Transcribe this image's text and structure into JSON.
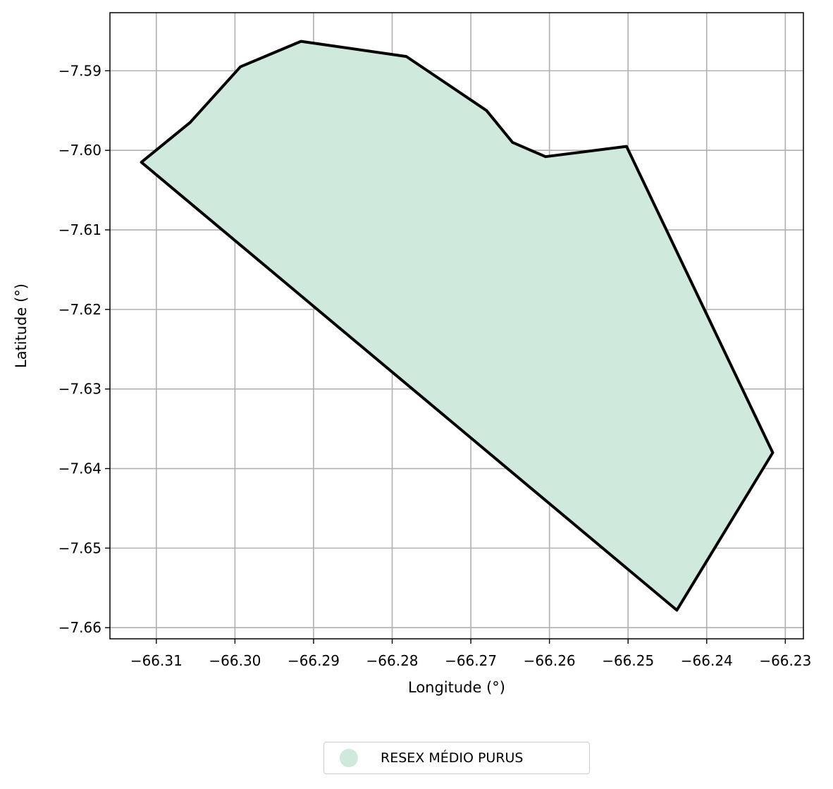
{
  "chart_data": {
    "type": "area",
    "xlabel": "Longitude (°)",
    "ylabel": "Latitude (°)",
    "xlim": [
      -66.3159,
      -66.2277
    ],
    "ylim": [
      -7.6614,
      -7.5827
    ],
    "xticks": [
      -66.31,
      -66.3,
      -66.29,
      -66.28,
      -66.27,
      -66.26,
      -66.25,
      -66.24,
      -66.23
    ],
    "xtick_labels": [
      "−66.31",
      "−66.30",
      "−66.29",
      "−66.28",
      "−66.27",
      "−66.26",
      "−66.25",
      "−66.24",
      "−66.23"
    ],
    "yticks": [
      -7.59,
      -7.6,
      -7.61,
      -7.62,
      -7.63,
      -7.64,
      -7.65,
      -7.66
    ],
    "ytick_labels": [
      "−7.59",
      "−7.60",
      "−7.61",
      "−7.62",
      "−7.63",
      "−7.64",
      "−7.65",
      "−7.66"
    ],
    "grid": true,
    "legend_position": "bottom-center",
    "series": [
      {
        "name": "RESEX MÉDIO PURUS",
        "fill_color": "#cfeadd",
        "edge_color": "#000000",
        "polygon": [
          [
            -66.3119,
            -7.6015
          ],
          [
            -66.3057,
            -7.5965
          ],
          [
            -66.2993,
            -7.5895
          ],
          [
            -66.2916,
            -7.5863
          ],
          [
            -66.2782,
            -7.5882
          ],
          [
            -66.268,
            -7.595
          ],
          [
            -66.2647,
            -7.599
          ],
          [
            -66.2605,
            -7.6008
          ],
          [
            -66.2502,
            -7.5995
          ],
          [
            -66.2316,
            -7.638
          ],
          [
            -66.2438,
            -7.6578
          ],
          [
            -66.3119,
            -7.6015
          ]
        ]
      }
    ]
  }
}
